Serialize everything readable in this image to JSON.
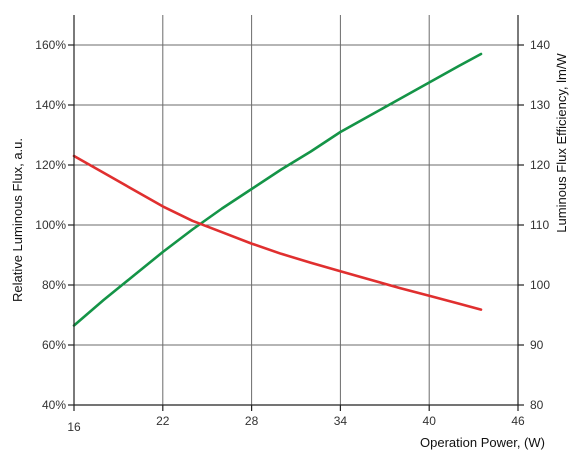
{
  "chart_data": {
    "type": "line",
    "xlabel": "Operation Power, (W)",
    "ylabel_left": "Relative Luminous Flux, a.u.",
    "ylabel_right": "Luminous Flux Efficiency, lm/W",
    "x_ticks": [
      "16",
      "22",
      "28",
      "34",
      "40",
      "46"
    ],
    "y_left_ticks": [
      "40%",
      "60%",
      "80%",
      "100%",
      "120%",
      "140%",
      "160%"
    ],
    "y_right_ticks": [
      "80",
      "90",
      "100",
      "110",
      "120",
      "130",
      "140"
    ],
    "xlim": [
      16,
      46
    ],
    "ylim_left": [
      40,
      170
    ],
    "ylim_right": [
      80,
      145
    ],
    "grid": true,
    "series": [
      {
        "axis": "left",
        "color": "#149447",
        "x": [
          16,
          18,
          20,
          22,
          24,
          26,
          28,
          30,
          32,
          34,
          36,
          38,
          40,
          42,
          43.5
        ],
        "values": [
          66.5,
          75,
          83,
          91,
          98.5,
          105.5,
          112,
          118.5,
          124.5,
          131,
          136.5,
          142,
          147.5,
          153,
          157
        ]
      },
      {
        "axis": "right",
        "color": "#e02f2f",
        "x": [
          16,
          18,
          20,
          22,
          24,
          26,
          28,
          30,
          32,
          34,
          36,
          38,
          40,
          42,
          43.5
        ],
        "values": [
          121.5,
          118.7,
          115.9,
          113.1,
          110.7,
          108.8,
          106.9,
          105.2,
          103.7,
          102.3,
          100.9,
          99.5,
          98.2,
          96.9,
          95.9
        ]
      }
    ]
  }
}
